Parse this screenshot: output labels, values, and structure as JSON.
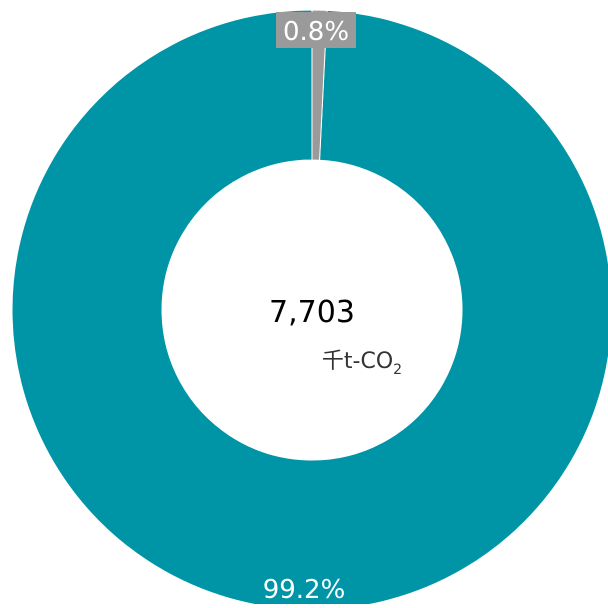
{
  "chart_data": {
    "type": "pie",
    "title": "",
    "donut": true,
    "center": {
      "total": "7,703",
      "unit_prefix": "千t-CO",
      "unit_subscript": "2"
    },
    "slices": [
      {
        "value": 99.2,
        "label": "99.2%",
        "color": "#0095a6"
      },
      {
        "value": 0.8,
        "label": "0.8%",
        "color": "#9a9a9a"
      }
    ],
    "legend": "none"
  }
}
